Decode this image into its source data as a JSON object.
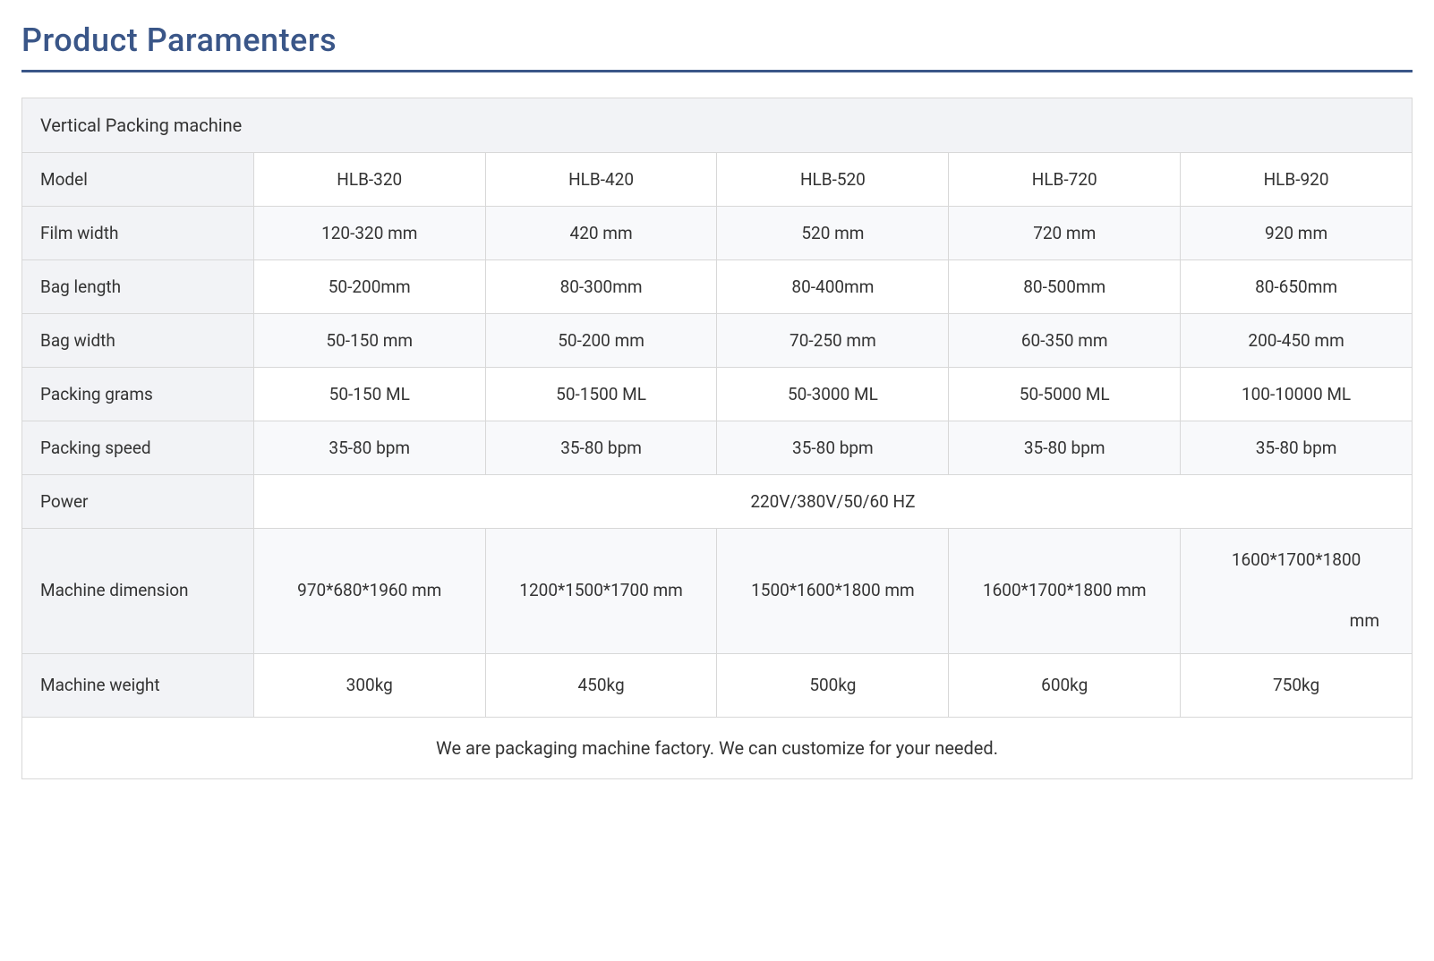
{
  "title": "Product Paramenters",
  "table": {
    "header": "Vertical  Packing  machine",
    "label_col_width": "190px",
    "colors": {
      "title_text": "#3a5688",
      "underline": "#3a5688",
      "border": "#d8d8d8",
      "label_bg": "#f2f3f6",
      "alt_row_bg": "#f8f9fb",
      "text": "#333333",
      "page_bg": "#ffffff"
    },
    "rows": [
      {
        "label": "Model",
        "cells": [
          "HLB-320",
          "HLB-420",
          "HLB-520",
          "HLB-720",
          "HLB-920"
        ]
      },
      {
        "label": "Film width",
        "cells": [
          "120-320 mm",
          "420 mm",
          "520 mm",
          "720 mm",
          "920 mm"
        ]
      },
      {
        "label": "Bag length",
        "cells": [
          "50-200mm",
          "80-300mm",
          "80-400mm",
          "80-500mm",
          "80-650mm"
        ]
      },
      {
        "label": "Bag width",
        "cells": [
          "50-150 mm",
          "50-200 mm",
          "70-250 mm",
          "60-350 mm",
          "200-450 mm"
        ]
      },
      {
        "label": "Packing grams",
        "cells": [
          "50-150 ML",
          "50-1500 ML",
          "50-3000 ML",
          "50-5000 ML",
          "100-10000 ML"
        ]
      },
      {
        "label": "Packing speed",
        "cells": [
          "35-80 bpm",
          "35-80 bpm",
          "35-80 bpm",
          "35-80 bpm",
          "35-80 bpm"
        ]
      },
      {
        "label": "Power",
        "span_value": "220V/380V/50/60 HZ"
      },
      {
        "label": "Machine dimension",
        "cells": [
          "970*680*1960 mm",
          "1200*1500*1700 mm",
          "1500*1600*1800 mm",
          "1600*1700*1800 mm",
          "1600*1700*1800"
        ],
        "last_suffix": "mm"
      },
      {
        "label": "Machine weight",
        "cells": [
          "300kg",
          "450kg",
          "500kg",
          "600kg",
          "750kg"
        ]
      }
    ],
    "footer": "We are packaging machine factory. We can customize for your needed."
  }
}
